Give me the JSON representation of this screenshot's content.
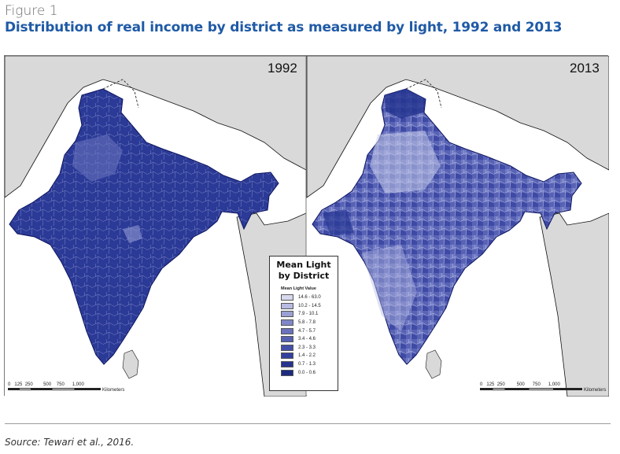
{
  "figure": {
    "label": "Figure 1",
    "title": "Distribution of real income by district as measured by light, 1992 and 2013"
  },
  "panels": [
    {
      "year": "1992"
    },
    {
      "year": "2013"
    }
  ],
  "legend": {
    "title_line1": "Mean Light",
    "title_line2": "by District",
    "subtitle": "Mean Light Value",
    "classes": [
      {
        "label": "14.6 - 63.0",
        "color": "#d7d9ee"
      },
      {
        "label": "10.2 - 14.5",
        "color": "#b7bbe1"
      },
      {
        "label": "7.9 - 10.1",
        "color": "#9aa0d4"
      },
      {
        "label": "5.8 - 7.8",
        "color": "#8087c8"
      },
      {
        "label": "4.7 - 5.7",
        "color": "#6a72be"
      },
      {
        "label": "3.4 - 4.6",
        "color": "#5660b4"
      },
      {
        "label": "2.3 - 3.3",
        "color": "#444faa"
      },
      {
        "label": "1.4 - 2.2",
        "color": "#3440a0"
      },
      {
        "label": "0.7 - 1.3",
        "color": "#27338f"
      },
      {
        "label": "0.0 - 0.6",
        "color": "#1c2a80"
      }
    ]
  },
  "scale_bar": {
    "ticks": [
      "0",
      "125",
      "250",
      "500",
      "750",
      "1,000"
    ],
    "unit": "Kilometers"
  },
  "source": "Source: Tewari et al., 2016.",
  "colors": {
    "title": "#1f5aa6",
    "land_outside": "#d9d9d9",
    "sea": "#ffffff",
    "map_1992_fill": "#2a3994",
    "map_2013_fill": "#4c58b0"
  }
}
